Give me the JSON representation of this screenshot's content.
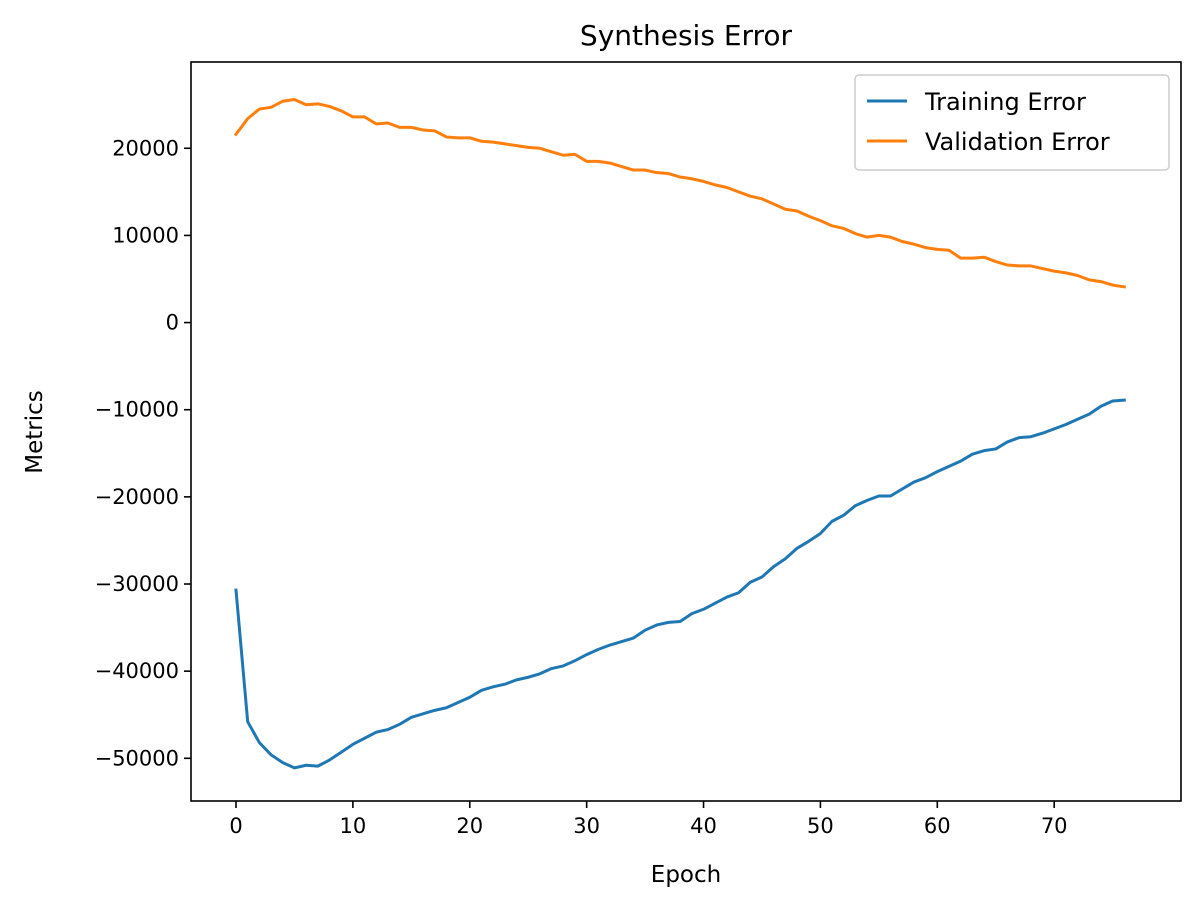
{
  "chart_data": {
    "type": "line",
    "title": "Synthesis Error",
    "xlabel": "Epoch",
    "ylabel": "Metrics",
    "xlim": [
      -3.85,
      80.85
    ],
    "ylim": [
      -54900,
      29900
    ],
    "x_ticks": [
      0,
      10,
      20,
      30,
      40,
      50,
      60,
      70
    ],
    "y_ticks": [
      -50000,
      -40000,
      -30000,
      -20000,
      -10000,
      0,
      10000,
      20000
    ],
    "x_tick_labels": [
      "0",
      "10",
      "20",
      "30",
      "40",
      "50",
      "60",
      "70"
    ],
    "y_tick_labels": [
      "−50000",
      "−40000",
      "−30000",
      "−20000",
      "−10000",
      "0",
      "10000",
      "20000"
    ],
    "grid": false,
    "legend_position": "top-right",
    "x": [
      0,
      1,
      2,
      3,
      4,
      5,
      6,
      7,
      8,
      9,
      10,
      11,
      12,
      13,
      14,
      15,
      16,
      17,
      18,
      19,
      20,
      21,
      22,
      23,
      24,
      25,
      26,
      27,
      28,
      29,
      30,
      31,
      32,
      33,
      34,
      35,
      36,
      37,
      38,
      39,
      40,
      41,
      42,
      43,
      44,
      45,
      46,
      47,
      48,
      49,
      50,
      51,
      52,
      53,
      54,
      55,
      56,
      57,
      58,
      59,
      60,
      61,
      62,
      63,
      64,
      65,
      66,
      67,
      68,
      69,
      70,
      71,
      72,
      73,
      74,
      75,
      76
    ],
    "series": [
      {
        "name": "Training Error",
        "color": "#1f77b4",
        "values": [
          -30700,
          -45800,
          -48200,
          -49600,
          -50500,
          -51100,
          -50800,
          -50900,
          -50200,
          -49300,
          -48400,
          -47700,
          -47000,
          -46700,
          -46100,
          -45300,
          -44900,
          -44500,
          -44200,
          -43600,
          -43000,
          -42200,
          -41800,
          -41500,
          -41000,
          -40700,
          -40300,
          -39700,
          -39400,
          -38800,
          -38100,
          -37500,
          -37000,
          -36600,
          -36200,
          -35300,
          -34700,
          -34400,
          -34300,
          -33400,
          -32900,
          -32200,
          -31500,
          -31000,
          -29800,
          -29200,
          -28000,
          -27100,
          -25900,
          -25100,
          -24200,
          -22800,
          -22100,
          -21000,
          -20400,
          -19900,
          -19900,
          -19100,
          -18300,
          -17800,
          -17100,
          -16500,
          -15900,
          -15100,
          -14700,
          -14500,
          -13700,
          -13200,
          -13100,
          -12700,
          -12200,
          -11700,
          -11100,
          -10500,
          -9600,
          -9000,
          -8900
        ]
      },
      {
        "name": "Validation Error",
        "color": "#ff7f0e",
        "values": [
          21600,
          23400,
          24500,
          24700,
          25400,
          25600,
          25000,
          25100,
          24800,
          24300,
          23600,
          23600,
          22800,
          22900,
          22400,
          22400,
          22100,
          22000,
          21300,
          21200,
          21200,
          20800,
          20700,
          20500,
          20300,
          20100,
          20000,
          19600,
          19200,
          19300,
          18500,
          18500,
          18300,
          17900,
          17500,
          17500,
          17200,
          17100,
          16700,
          16500,
          16200,
          15800,
          15500,
          15000,
          14500,
          14200,
          13600,
          13000,
          12800,
          12200,
          11700,
          11100,
          10800,
          10200,
          9800,
          10000,
          9800,
          9300,
          9000,
          8600,
          8400,
          8300,
          7400,
          7400,
          7500,
          7000,
          6600,
          6500,
          6500,
          6200,
          5900,
          5700,
          5400,
          4900,
          4700,
          4300,
          4100
        ]
      }
    ]
  }
}
